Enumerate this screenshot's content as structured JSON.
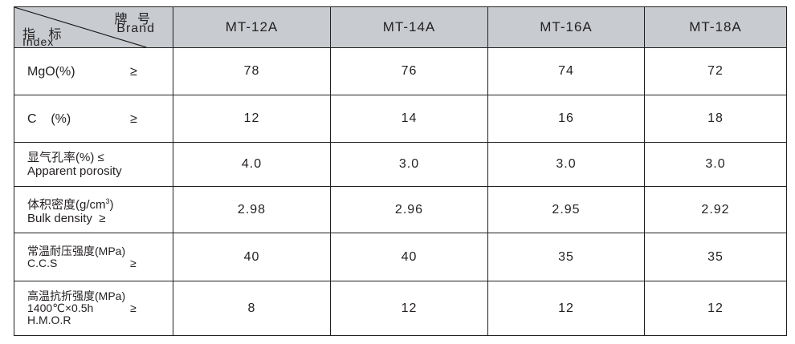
{
  "header": {
    "brand_cn": "牌 号",
    "brand_en": "Brand",
    "index_cn": "指 标",
    "index_en": "Index",
    "columns": [
      "MT-12A",
      "MT-14A",
      "MT-16A",
      "MT-18A"
    ]
  },
  "rows": [
    {
      "label_lines": [
        "MgO(%)"
      ],
      "symbol": "≥",
      "values": [
        "78",
        "76",
        "74",
        "72"
      ]
    },
    {
      "label_lines": [
        "C    (%)"
      ],
      "symbol": "≥",
      "values": [
        "12",
        "14",
        "16",
        "18"
      ]
    },
    {
      "label_lines": [
        "显气孔率(%) ≤",
        "Apparent porosity"
      ],
      "symbol": "",
      "values": [
        "4.0",
        "3.0",
        "3.0",
        "3.0"
      ]
    },
    {
      "label_lines": [
        "体积密度(g/cm",
        "Bulk density  ≥"
      ],
      "label_sup": "3",
      "label_tail": ")",
      "symbol": "",
      "values": [
        "2.98",
        "2.96",
        "2.95",
        "2.92"
      ]
    },
    {
      "label_lines": [
        "常温耐压强度(MPa)",
        "C.C.S"
      ],
      "symbol": "≥",
      "values": [
        "40",
        "40",
        "35",
        "35"
      ]
    },
    {
      "label_lines": [
        "高温抗折强度(MPa)",
        "1400℃×0.5h",
        "H.M.O.R"
      ],
      "symbol": "≥",
      "values": [
        "8",
        "12",
        "12",
        "12"
      ]
    }
  ]
}
